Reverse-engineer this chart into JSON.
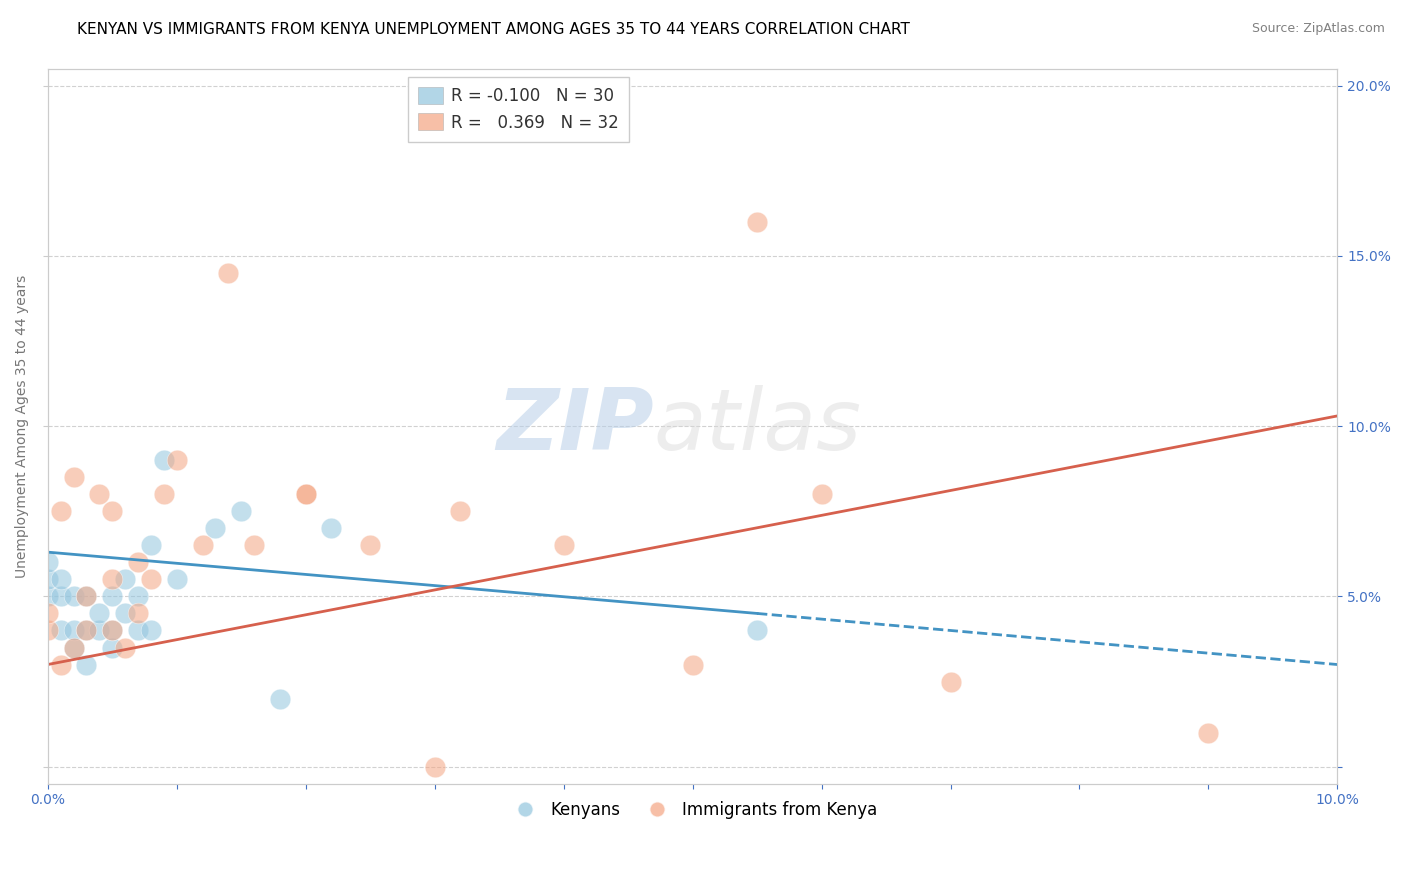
{
  "title": "KENYAN VS IMMIGRANTS FROM KENYA UNEMPLOYMENT AMONG AGES 35 TO 44 YEARS CORRELATION CHART",
  "source": "Source: ZipAtlas.com",
  "ylabel": "Unemployment Among Ages 35 to 44 years",
  "xlim": [
    0.0,
    0.1
  ],
  "ylim": [
    -0.005,
    0.205
  ],
  "xticks": [
    0.0,
    0.01,
    0.02,
    0.03,
    0.04,
    0.05,
    0.06,
    0.07,
    0.08,
    0.09,
    0.1
  ],
  "yticks": [
    0.0,
    0.05,
    0.1,
    0.15,
    0.2
  ],
  "xtick_labels": [
    "0.0%",
    "",
    "",
    "",
    "",
    "",
    "",
    "",
    "",
    "",
    "10.0%"
  ],
  "ytick_labels_right": [
    "",
    "5.0%",
    "10.0%",
    "15.0%",
    "20.0%"
  ],
  "legend_r1": "R = -0.100",
  "legend_n1": "N = 30",
  "legend_r2": "R =  0.369",
  "legend_n2": "N = 32",
  "kenyan_color": "#92c5de",
  "immigrant_color": "#f4a582",
  "kenyan_line_color": "#4393c3",
  "immigrant_line_color": "#d6604d",
  "watermark_zip": "ZIP",
  "watermark_atlas": "atlas",
  "kenyan_x": [
    0.0,
    0.0,
    0.0,
    0.001,
    0.001,
    0.001,
    0.002,
    0.002,
    0.002,
    0.003,
    0.003,
    0.003,
    0.004,
    0.004,
    0.005,
    0.005,
    0.005,
    0.006,
    0.006,
    0.007,
    0.007,
    0.008,
    0.008,
    0.009,
    0.01,
    0.013,
    0.015,
    0.018,
    0.022,
    0.055
  ],
  "kenyan_y": [
    0.05,
    0.055,
    0.06,
    0.04,
    0.05,
    0.055,
    0.035,
    0.04,
    0.05,
    0.03,
    0.04,
    0.05,
    0.04,
    0.045,
    0.035,
    0.04,
    0.05,
    0.045,
    0.055,
    0.04,
    0.05,
    0.04,
    0.065,
    0.09,
    0.055,
    0.07,
    0.075,
    0.02,
    0.07,
    0.04
  ],
  "immigrant_x": [
    0.0,
    0.0,
    0.001,
    0.001,
    0.002,
    0.002,
    0.003,
    0.003,
    0.004,
    0.005,
    0.005,
    0.005,
    0.006,
    0.007,
    0.007,
    0.008,
    0.009,
    0.01,
    0.012,
    0.014,
    0.016,
    0.02,
    0.02,
    0.025,
    0.03,
    0.032,
    0.04,
    0.05,
    0.055,
    0.06,
    0.07,
    0.09
  ],
  "immigrant_y": [
    0.04,
    0.045,
    0.03,
    0.075,
    0.035,
    0.085,
    0.04,
    0.05,
    0.08,
    0.04,
    0.055,
    0.075,
    0.035,
    0.045,
    0.06,
    0.055,
    0.08,
    0.09,
    0.065,
    0.145,
    0.065,
    0.08,
    0.08,
    0.065,
    0.0,
    0.075,
    0.065,
    0.03,
    0.16,
    0.08,
    0.025,
    0.01
  ],
  "kenyan_trendline_solid": [
    [
      0.0,
      0.063
    ],
    [
      0.055,
      0.045
    ]
  ],
  "kenyan_trendline_dashed": [
    [
      0.055,
      0.045
    ],
    [
      0.1,
      0.03
    ]
  ],
  "immigrant_trendline": [
    [
      0.0,
      0.03
    ],
    [
      0.1,
      0.103
    ]
  ],
  "title_fontsize": 11,
  "axis_label_fontsize": 10,
  "tick_fontsize": 10,
  "legend_fontsize": 12
}
